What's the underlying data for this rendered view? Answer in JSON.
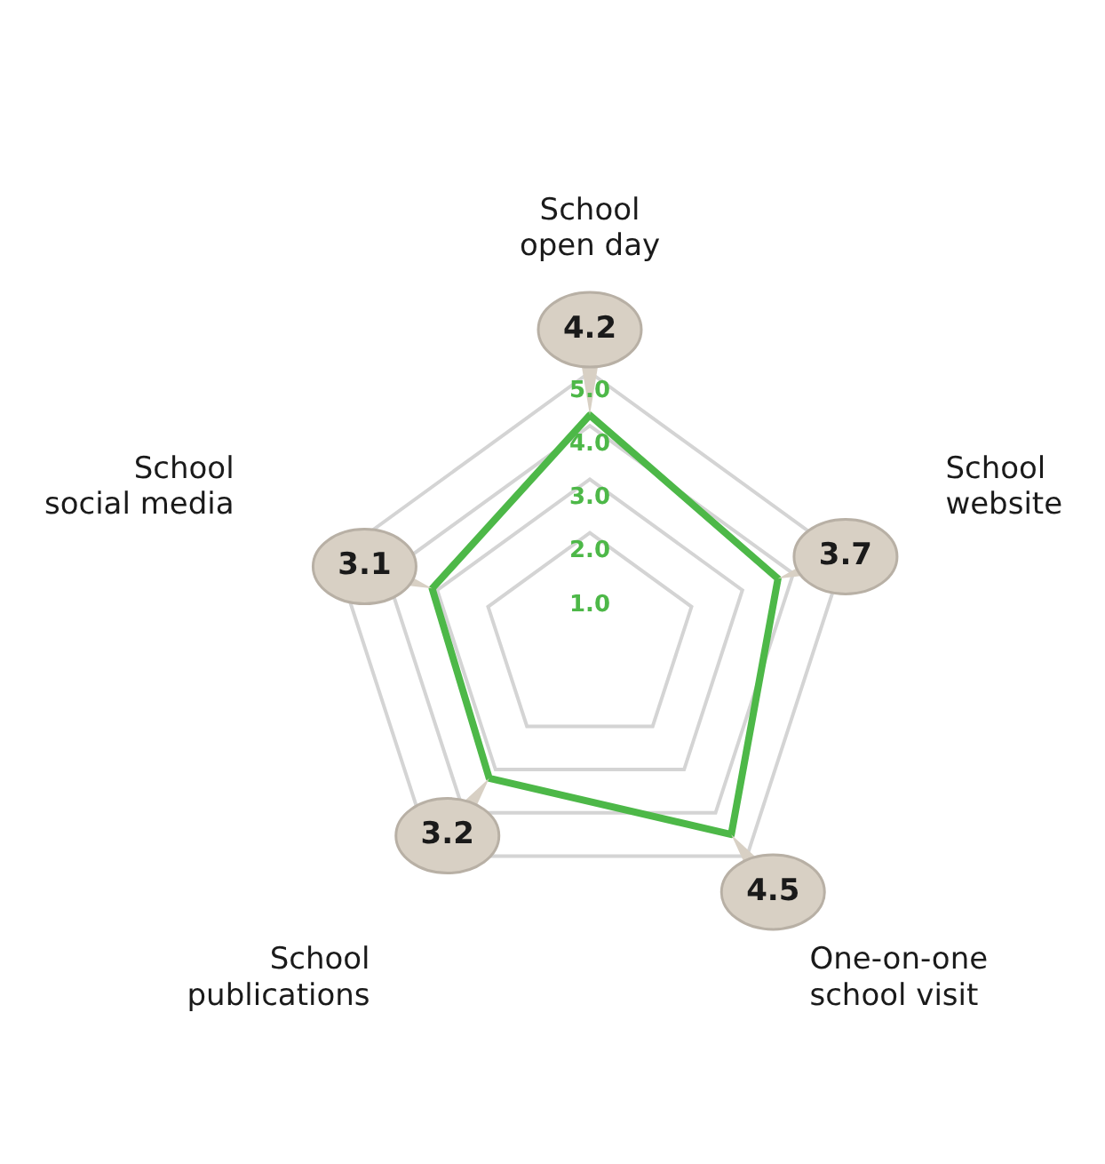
{
  "chart_data": {
    "type": "radar",
    "categories": [
      "School open day",
      "School website",
      "One-on-one school visit",
      "School publications",
      "School social media"
    ],
    "series": [
      {
        "color": "#4db848",
        "values": [
          4.2,
          3.7,
          4.5,
          3.2,
          3.1
        ]
      }
    ],
    "ylim": [
      0,
      5
    ],
    "yticks": [
      {
        "value": 1,
        "label": "1.0"
      },
      {
        "value": 2,
        "label": "2.0"
      },
      {
        "value": 3,
        "label": "3.0"
      },
      {
        "value": 4,
        "label": "4.0"
      },
      {
        "value": 5,
        "label": "5.0"
      }
    ],
    "grid": true,
    "legend": false,
    "marker": "none",
    "data_labels": true
  }
}
